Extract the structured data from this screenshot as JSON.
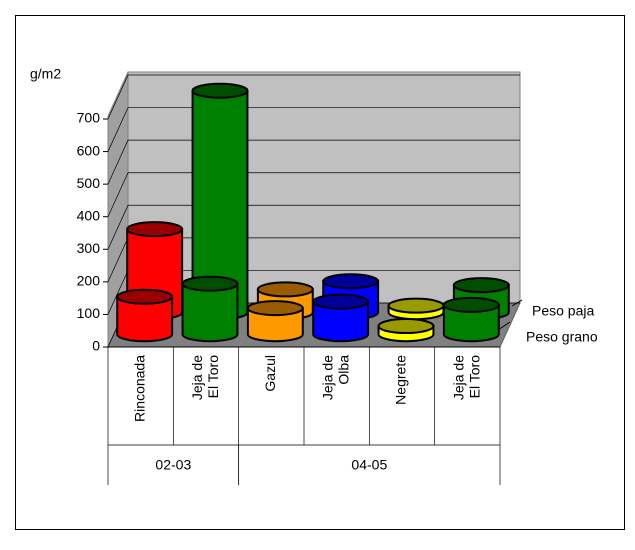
{
  "chart_data": {
    "type": "cylinder3d",
    "y_label": "g/m2",
    "categories": [
      "Rinconada",
      "Jeja de El Toro",
      "Gazul",
      "Jeja de Olba",
      "Negrete",
      "Jeja de El Toro"
    ],
    "groups": [
      {
        "label": "02-03",
        "span": 2
      },
      {
        "label": "04-05",
        "span": 4
      }
    ],
    "colors": [
      "#ff0000",
      "#008000",
      "#ff9900",
      "#0000ff",
      "#ffff00",
      "#008000"
    ],
    "series": [
      {
        "name": "Peso paja",
        "values": [
          255,
          680,
          70,
          95,
          20,
          83
        ]
      },
      {
        "name": "Peso grano",
        "values": [
          115,
          155,
          80,
          100,
          25,
          90
        ]
      }
    ],
    "ylim": [
      0,
      700
    ],
    "yticks": [
      0,
      100,
      200,
      300,
      400,
      500,
      600,
      700
    ],
    "grid": true
  }
}
